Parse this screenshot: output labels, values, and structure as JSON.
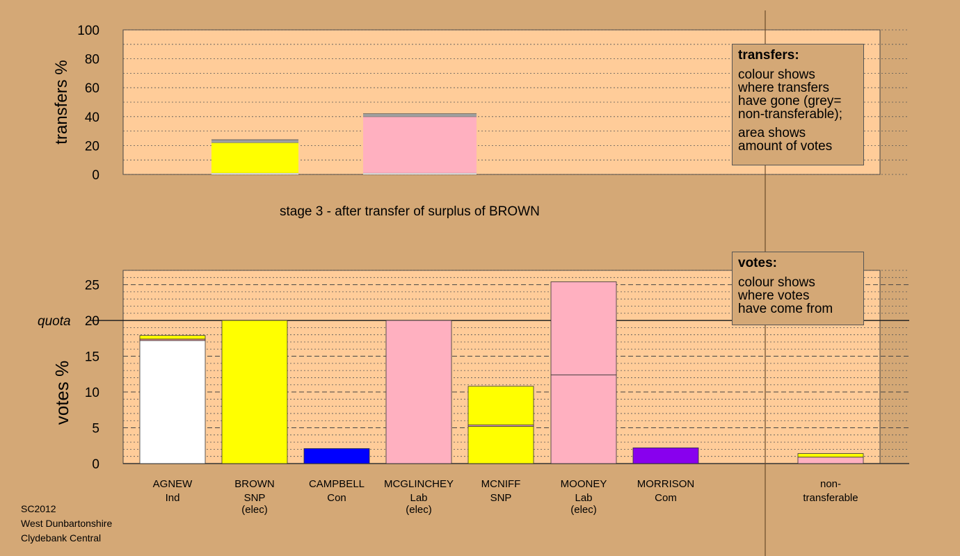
{
  "colors": {
    "background": "#D4A876",
    "plot_area": "#FFCC99",
    "AGNEW": "#FFFFFF",
    "BROWN": "#FFFF00",
    "CAMPBELL": "#0000FF",
    "MCGLINCHEY": "#FFB0C0",
    "MCNIFF": "#FFFF00",
    "MOONEY": "#FFB0C0",
    "MORRISON": "#8800EE",
    "non_transferable": "#A0A0A0"
  },
  "subtitle": "stage 3 - after transfer of surplus of BROWN",
  "footer": [
    "SC2012",
    "West Dunbartonshire",
    "Clydebank Central"
  ],
  "legend_transfers": {
    "title": "transfers:",
    "lines1": [
      "colour shows",
      "where transfers",
      "have gone (grey=",
      "non-transferable);"
    ],
    "lines2": [
      "area shows",
      "amount of votes"
    ]
  },
  "legend_votes": {
    "title": "votes:",
    "lines": [
      "colour shows",
      "where votes",
      "have come from"
    ]
  },
  "chart_data": [
    {
      "type": "bar",
      "stacked": true,
      "ylabel": "transfers %",
      "ylim": [
        0,
        100
      ],
      "yticks": [
        "0",
        "20",
        "40",
        "60",
        "80",
        "100"
      ],
      "grid": "dotted",
      "categories": [
        "AGNEW",
        "MCNIFF"
      ],
      "bars": [
        {
          "candidate": "AGNEW",
          "segments": [
            {
              "source": "AGNEW",
              "value": 1
            },
            {
              "source": "BROWN",
              "value": 21
            },
            {
              "source": "non-transferable",
              "value": 2
            }
          ]
        },
        {
          "candidate": "MCNIFF",
          "segments": [
            {
              "source": "AGNEW",
              "value": 1
            },
            {
              "source": "MCGLINCHEY",
              "value": 39
            },
            {
              "source": "non-transferable",
              "value": 2
            }
          ]
        }
      ]
    },
    {
      "type": "bar",
      "stacked": true,
      "ylabel": "votes %",
      "ylim": [
        0,
        27
      ],
      "yticks": [
        "0",
        "5",
        "10",
        "15",
        "20",
        "25"
      ],
      "quota_label": "quota",
      "quota": 20,
      "grid": "dashed",
      "categories": [
        {
          "name": "AGNEW",
          "party": "Ind",
          "status": ""
        },
        {
          "name": "BROWN",
          "party": "SNP",
          "status": "(elec)"
        },
        {
          "name": "CAMPBELL",
          "party": "Con",
          "status": ""
        },
        {
          "name": "MCGLINCHEY",
          "party": "Lab",
          "status": "(elec)"
        },
        {
          "name": "MCNIFF",
          "party": "SNP",
          "status": ""
        },
        {
          "name": "MOONEY",
          "party": "Lab",
          "status": "(elec)"
        },
        {
          "name": "MORRISON",
          "party": "Com",
          "status": ""
        },
        {
          "name": "non-",
          "party": "transferable",
          "status": ""
        }
      ],
      "bars": [
        {
          "candidate": "AGNEW",
          "segments": [
            {
              "source": "AGNEW",
              "value": 17.2
            },
            {
              "source": "MCGLINCHEY",
              "value": 0.2
            },
            {
              "source": "BROWN",
              "value": 0.5
            }
          ]
        },
        {
          "candidate": "BROWN",
          "segments": [
            {
              "source": "BROWN",
              "value": 20.0
            }
          ]
        },
        {
          "candidate": "CAMPBELL",
          "segments": [
            {
              "source": "CAMPBELL",
              "value": 2.1
            }
          ]
        },
        {
          "candidate": "MCGLINCHEY",
          "segments": [
            {
              "source": "MCGLINCHEY",
              "value": 20.0
            }
          ]
        },
        {
          "candidate": "MCNIFF",
          "segments": [
            {
              "source": "MCNIFF",
              "value": 5.2
            },
            {
              "source": "MCGLINCHEY",
              "value": 0.2
            },
            {
              "source": "BROWN",
              "value": 5.4
            }
          ]
        },
        {
          "candidate": "MOONEY",
          "segments": [
            {
              "source": "MOONEY",
              "value": 12.4
            },
            {
              "source": "MCGLINCHEY",
              "value": 13.0
            }
          ]
        },
        {
          "candidate": "MORRISON",
          "segments": [
            {
              "source": "MORRISON",
              "value": 2.2
            }
          ]
        },
        {
          "candidate": "non-transferable",
          "segments": [
            {
              "source": "MCGLINCHEY",
              "value": 0.9
            },
            {
              "source": "BROWN",
              "value": 0.5
            }
          ]
        }
      ]
    }
  ]
}
